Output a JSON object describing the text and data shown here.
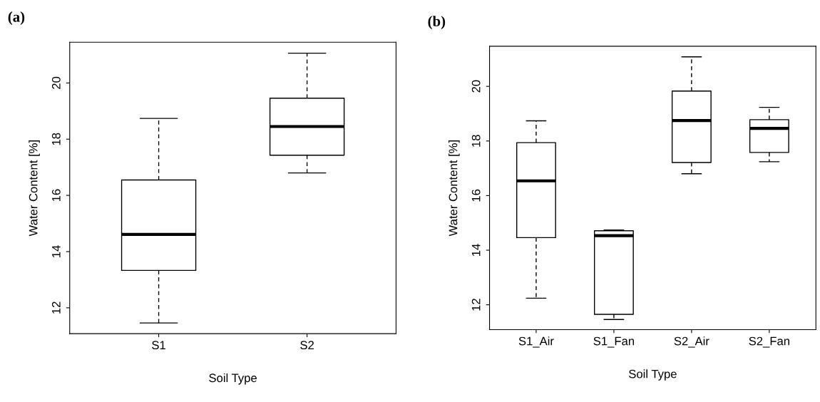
{
  "chart_data": [
    {
      "type": "box",
      "title": "(a)",
      "xlabel": "Soil Type",
      "ylabel": "Water Content [%]",
      "categories": [
        "S1",
        "S2"
      ],
      "boxes": [
        {
          "low": 11.46,
          "q1": 13.33,
          "median": 14.61,
          "q3": 16.55,
          "high": 18.74
        },
        {
          "low": 16.8,
          "q1": 17.43,
          "median": 18.45,
          "q3": 19.46,
          "high": 21.06
        }
      ],
      "ylim": [
        11.08,
        21.45
      ],
      "yticks": [
        12,
        14,
        16,
        18,
        20
      ],
      "grid": false
    },
    {
      "type": "box",
      "title": "(b)",
      "xlabel": "Soil Type",
      "ylabel": "Water Content [%]",
      "categories": [
        "S1_Air",
        "S1_Fan",
        "S2_Air",
        "S2_Fan"
      ],
      "boxes": [
        {
          "low": 12.24,
          "q1": 14.46,
          "median": 16.54,
          "q3": 17.94,
          "high": 18.74
        },
        {
          "low": 11.46,
          "q1": 11.65,
          "median": 14.53,
          "q3": 14.71,
          "high": 14.74
        },
        {
          "low": 16.8,
          "q1": 17.21,
          "median": 18.75,
          "q3": 19.83,
          "high": 21.08
        },
        {
          "low": 17.24,
          "q1": 17.58,
          "median": 18.46,
          "q3": 18.78,
          "high": 19.23
        }
      ],
      "ylim": [
        11.09,
        21.47
      ],
      "yticks": [
        12,
        14,
        16,
        18,
        20
      ],
      "grid": false
    }
  ]
}
